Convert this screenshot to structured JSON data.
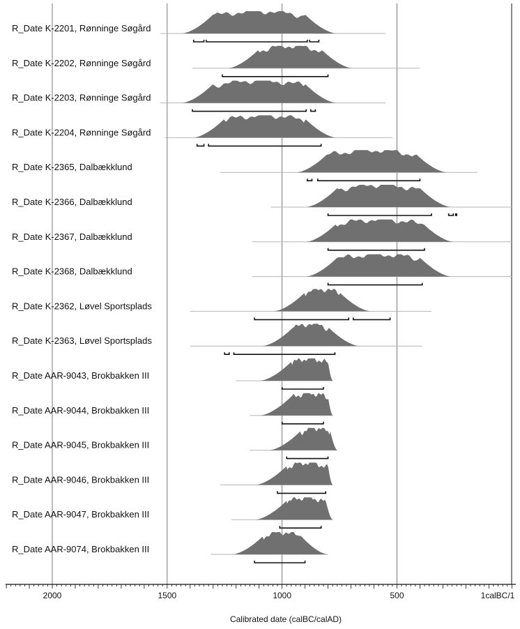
{
  "chart_data": {
    "type": "area",
    "title": "",
    "xlabel": "Calibrated date (calBC/calAD)",
    "ylabel": "",
    "x_axis": {
      "direction": "descending",
      "ticks": [
        2000,
        1500,
        1000,
        500,
        1
      ],
      "tick_labels": [
        "2000",
        "1500",
        "1000",
        "500",
        "1calBC/1"
      ],
      "range": [
        2200,
        0
      ],
      "grid_lines": [
        2000,
        1500,
        1000,
        500,
        1
      ]
    },
    "colors": {
      "distribution": "#707070",
      "range_bar": "#111111",
      "grid": "#6a6a6a"
    },
    "series": [
      {
        "name": "R_Date K-2201, Rønninge Søgård",
        "extent": [
          1530,
          550
        ],
        "peak": 1080,
        "plateau": [
          1300,
          900
        ],
        "ranges": [
          [
            1385,
            1340
          ],
          [
            1330,
            890
          ],
          [
            880,
            840
          ]
        ]
      },
      {
        "name": "R_Date K-2202, Rønninge Søgård",
        "extent": [
          1390,
          400
        ],
        "peak": 930,
        "plateau": [
          1100,
          830
        ],
        "ranges": [
          [
            1260,
            800
          ]
        ]
      },
      {
        "name": "R_Date K-2203, Rønninge Søgård",
        "extent": [
          1530,
          550
        ],
        "peak": 1080,
        "plateau": [
          1300,
          900
        ],
        "ranges": [
          [
            1390,
            895
          ],
          [
            875,
            855
          ]
        ]
      },
      {
        "name": "R_Date K-2204, Rønninge Søgård",
        "extent": [
          1510,
          520
        ],
        "peak": 1050,
        "plateau": [
          1250,
          900
        ],
        "ranges": [
          [
            1370,
            1340
          ],
          [
            1320,
            830
          ]
        ]
      },
      {
        "name": "R_Date K-2365, Dalbækklund",
        "extent": [
          1270,
          150
        ],
        "peak": 560,
        "plateau": [
          800,
          420
        ],
        "ranges": [
          [
            890,
            870
          ],
          [
            845,
            400
          ]
        ]
      },
      {
        "name": "R_Date K-2366, Dalbækklund",
        "extent": [
          1050,
          0
        ],
        "peak": 500,
        "plateau": [
          760,
          400
        ],
        "ranges": [
          [
            800,
            350
          ],
          [
            275,
            255
          ],
          [
            245,
            240
          ]
        ]
      },
      {
        "name": "R_Date K-2367, Dalbækklund",
        "extent": [
          1130,
          0
        ],
        "peak": 480,
        "plateau": [
          760,
          390
        ],
        "ranges": [
          [
            800,
            380
          ]
        ]
      },
      {
        "name": "R_Date K-2368, Dalbækklund",
        "extent": [
          1130,
          0
        ],
        "peak": 480,
        "plateau": [
          760,
          400
        ],
        "ranges": [
          [
            800,
            390
          ]
        ]
      },
      {
        "name": "R_Date K-2362, Løvel Sportsplads",
        "extent": [
          1400,
          350
        ],
        "peak": 820,
        "plateau": [
          900,
          750
        ],
        "ranges": [
          [
            1120,
            710
          ],
          [
            690,
            530
          ]
        ]
      },
      {
        "name": "R_Date K-2363, Løvel Sportsplads",
        "extent": [
          1400,
          390
        ],
        "peak": 870,
        "plateau": [
          950,
          800
        ],
        "ranges": [
          [
            1250,
            1230
          ],
          [
            1210,
            770
          ]
        ]
      },
      {
        "name": "R_Date AAR-9043, Brokbakken III",
        "extent": [
          1200,
          780
        ],
        "peak": 880,
        "plateau": [
          960,
          800
        ],
        "ranges": [
          [
            1000,
            820
          ]
        ]
      },
      {
        "name": "R_Date AAR-9044, Brokbakken III",
        "extent": [
          1140,
          780
        ],
        "peak": 880,
        "plateau": [
          960,
          800
        ],
        "ranges": [
          [
            1000,
            820
          ]
        ]
      },
      {
        "name": "R_Date AAR-9045, Brokbakken III",
        "extent": [
          1140,
          760
        ],
        "peak": 840,
        "plateau": [
          920,
          790
        ],
        "ranges": [
          [
            980,
            800
          ]
        ]
      },
      {
        "name": "R_Date AAR-9046, Brokbakken III",
        "extent": [
          1270,
          780
        ],
        "peak": 900,
        "plateau": [
          980,
          800
        ],
        "ranges": [
          [
            1020,
            810
          ]
        ]
      },
      {
        "name": "R_Date AAR-9047, Brokbakken III",
        "extent": [
          1220,
          780
        ],
        "peak": 900,
        "plateau": [
          980,
          810
        ],
        "ranges": [
          [
            1010,
            830
          ]
        ]
      },
      {
        "name": "R_Date AAR-9074, Brokbakken III",
        "extent": [
          1310,
          800
        ],
        "peak": 1010,
        "plateau": [
          1080,
          920
        ],
        "ranges": [
          [
            1120,
            900
          ]
        ]
      }
    ]
  }
}
